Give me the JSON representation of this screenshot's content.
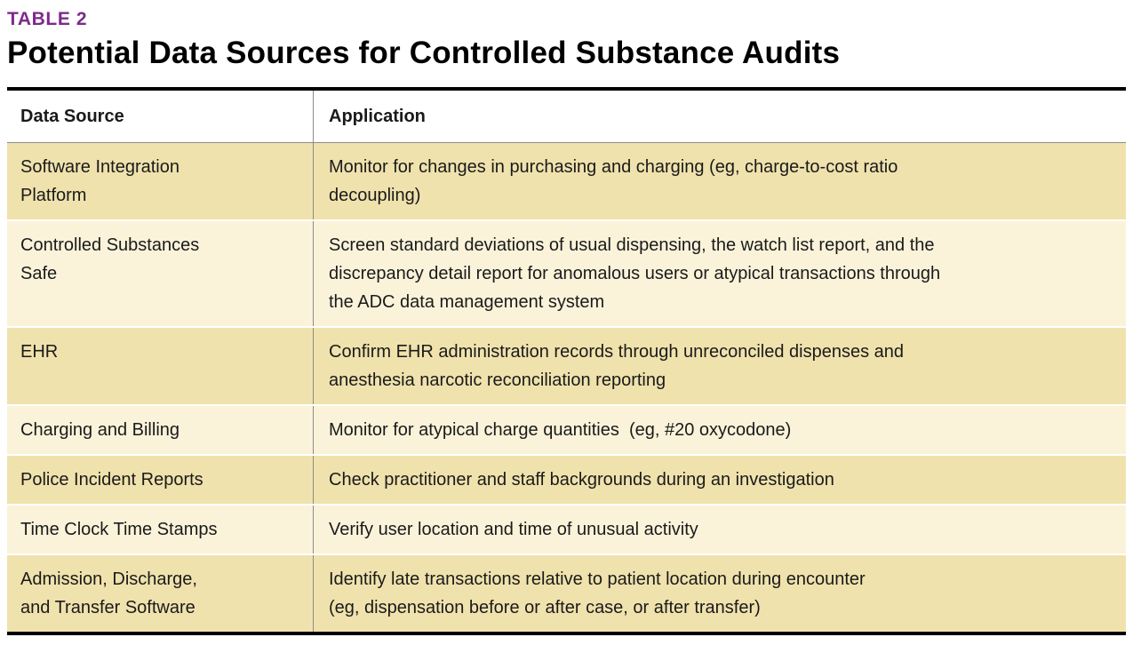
{
  "table": {
    "label": "TABLE 2",
    "title": "Potential Data Sources for Controlled Substance Audits",
    "columns": [
      "Data Source",
      "Application"
    ],
    "rows": [
      {
        "source": "Software Integration\nPlatform",
        "application": "Monitor for changes in purchasing and charging (eg, charge-to-cost ratio\ndecoupling)"
      },
      {
        "source": "Controlled Substances\nSafe",
        "application": "Screen standard deviations of usual dispensing, the watch list report, and the\ndiscrepancy detail report for anomalous users or atypical transactions through\nthe ADC data management system"
      },
      {
        "source": "EHR",
        "application": "Confirm EHR administration records through unreconciled dispenses and\nanesthesia narcotic reconciliation reporting"
      },
      {
        "source": "Charging and Billing",
        "application": "Monitor for atypical charge quantities  (eg, #20 oxycodone)"
      },
      {
        "source": "Police Incident Reports",
        "application": "Check practitioner and staff backgrounds during an investigation"
      },
      {
        "source": "Time Clock Time Stamps",
        "application": "Verify user location and time of unusual activity"
      },
      {
        "source": "Admission, Discharge,\nand Transfer Software",
        "application": "Identify late transactions relative to patient location during encounter\n(eg, dispensation before or after case, or after transfer)"
      }
    ]
  },
  "colors": {
    "label_purple": "#7d2b8a",
    "row_dark_tan": "#f0e2ad",
    "row_light_cream": "#faf3da",
    "rule_black": "#000000",
    "rule_gray": "#8c8c8c"
  }
}
